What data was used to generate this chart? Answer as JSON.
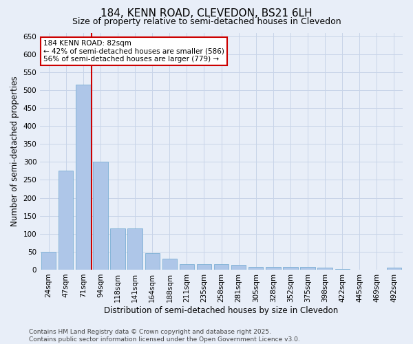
{
  "title": "184, KENN ROAD, CLEVEDON, BS21 6LH",
  "subtitle": "Size of property relative to semi-detached houses in Clevedon",
  "xlabel": "Distribution of semi-detached houses by size in Clevedon",
  "ylabel": "Number of semi-detached properties",
  "categories": [
    "24sqm",
    "47sqm",
    "71sqm",
    "94sqm",
    "118sqm",
    "141sqm",
    "164sqm",
    "188sqm",
    "211sqm",
    "235sqm",
    "258sqm",
    "281sqm",
    "305sqm",
    "328sqm",
    "352sqm",
    "375sqm",
    "398sqm",
    "422sqm",
    "445sqm",
    "469sqm",
    "492sqm"
  ],
  "values": [
    50,
    275,
    515,
    300,
    115,
    115,
    45,
    30,
    15,
    15,
    15,
    13,
    8,
    8,
    8,
    8,
    6,
    2,
    0,
    0,
    5
  ],
  "bar_color": "#aec6e8",
  "bar_edge_color": "#7aafd4",
  "vline_x": 2.5,
  "vline_color": "#cc0000",
  "annotation_text": "184 KENN ROAD: 82sqm\n← 42% of semi-detached houses are smaller (586)\n56% of semi-detached houses are larger (779) →",
  "annotation_box_facecolor": "#ffffff",
  "annotation_box_edgecolor": "#cc0000",
  "grid_color": "#c8d4e8",
  "background_color": "#e8eef8",
  "ylim": [
    0,
    660
  ],
  "yticks": [
    0,
    50,
    100,
    150,
    200,
    250,
    300,
    350,
    400,
    450,
    500,
    550,
    600,
    650
  ],
  "footer_text": "Contains HM Land Registry data © Crown copyright and database right 2025.\nContains public sector information licensed under the Open Government Licence v3.0.",
  "title_fontsize": 11,
  "subtitle_fontsize": 9,
  "axis_label_fontsize": 8.5,
  "tick_fontsize": 7.5,
  "annotation_fontsize": 7.5,
  "footer_fontsize": 6.5
}
